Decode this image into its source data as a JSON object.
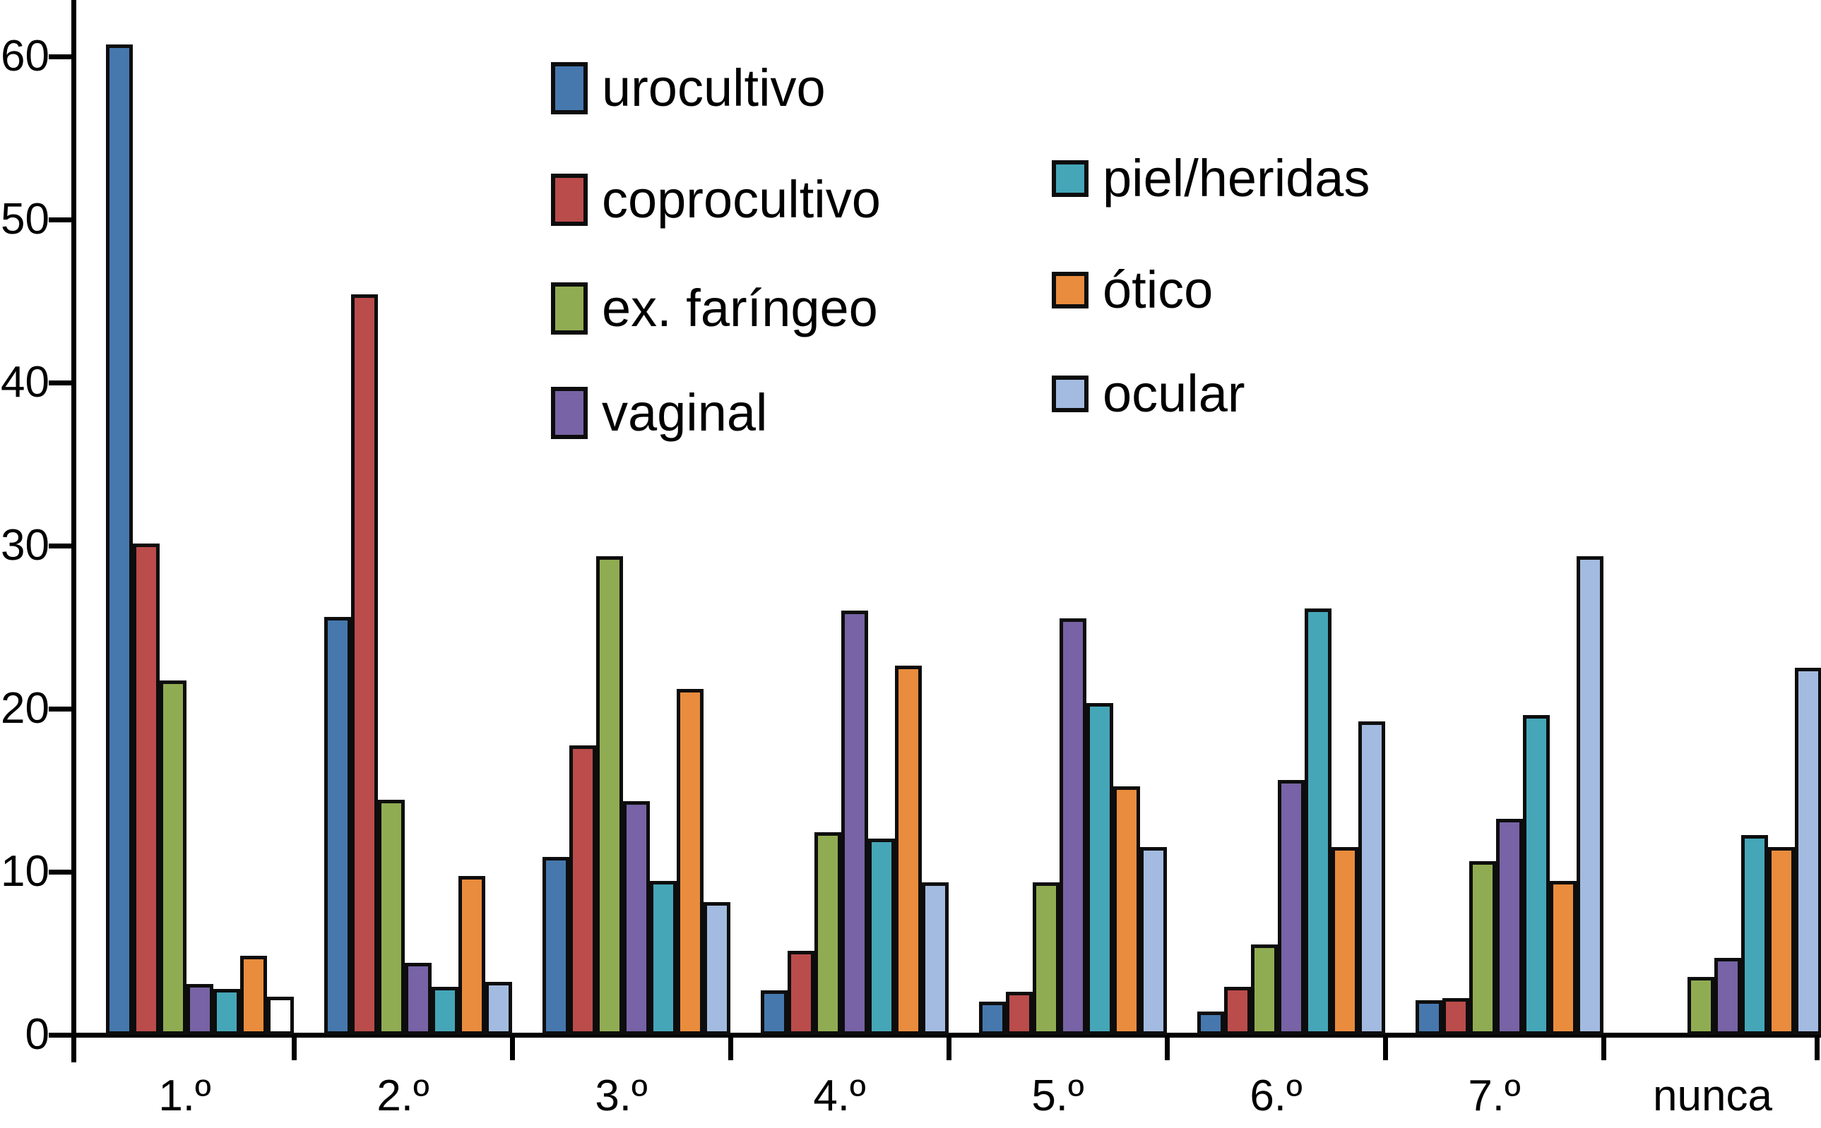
{
  "chart_data": {
    "type": "bar",
    "title": "",
    "xlabel": "",
    "ylabel": "",
    "categories": [
      "1.º",
      "2.º",
      "3.º",
      "4.º",
      "5.º",
      "6.º",
      "7.º",
      "nunca"
    ],
    "series": [
      {
        "name": "urocultivo",
        "color": "#4678AE",
        "values": [
          60.6,
          25.5,
          10.8,
          2.6,
          1.9,
          1.3,
          2.0,
          0
        ]
      },
      {
        "name": "coprocultivo",
        "color": "#BA4C4B",
        "values": [
          30.0,
          45.3,
          17.6,
          5.0,
          2.5,
          2.8,
          2.1,
          0
        ]
      },
      {
        "name": "ex. faríngeo",
        "color": "#90AC52",
        "values": [
          21.6,
          14.3,
          29.2,
          12.3,
          9.2,
          5.4,
          10.5,
          3.4
        ]
      },
      {
        "name": "vaginal",
        "color": "#7763A5",
        "values": [
          3.0,
          4.3,
          14.2,
          25.9,
          25.4,
          15.5,
          13.1,
          4.6
        ]
      },
      {
        "name": "piel/heridas",
        "color": "#45A6B8",
        "values": [
          2.7,
          2.8,
          9.3,
          11.9,
          20.2,
          26.0,
          19.5,
          12.1
        ]
      },
      {
        "name": "ótico",
        "color": "#E98C3D",
        "values": [
          4.7,
          9.6,
          21.1,
          22.5,
          15.1,
          11.4,
          9.3,
          11.4
        ]
      },
      {
        "name": "ocular",
        "color": "#A3BBE0",
        "values": [
          2.2,
          3.1,
          8.0,
          9.2,
          11.4,
          19.1,
          29.2,
          22.4
        ]
      }
    ],
    "bar_fill_overrides": [
      {
        "category_index": 0,
        "series_index": 6,
        "color": "#FFFFFF",
        "note": "ocular bar of group 1.º is drawn unfilled (white) in the original"
      }
    ],
    "y_ticks": [
      0,
      10,
      20,
      30,
      40,
      50,
      60
    ],
    "ylim": [
      0,
      63.5
    ],
    "grid": false,
    "legend_position": "inside-top",
    "legend_columns": {
      "left": [
        0,
        1,
        2,
        3
      ],
      "right": [
        4,
        5,
        6
      ]
    },
    "axis_color": "#000000",
    "bar_stroke_color": "#0d0d0d"
  }
}
